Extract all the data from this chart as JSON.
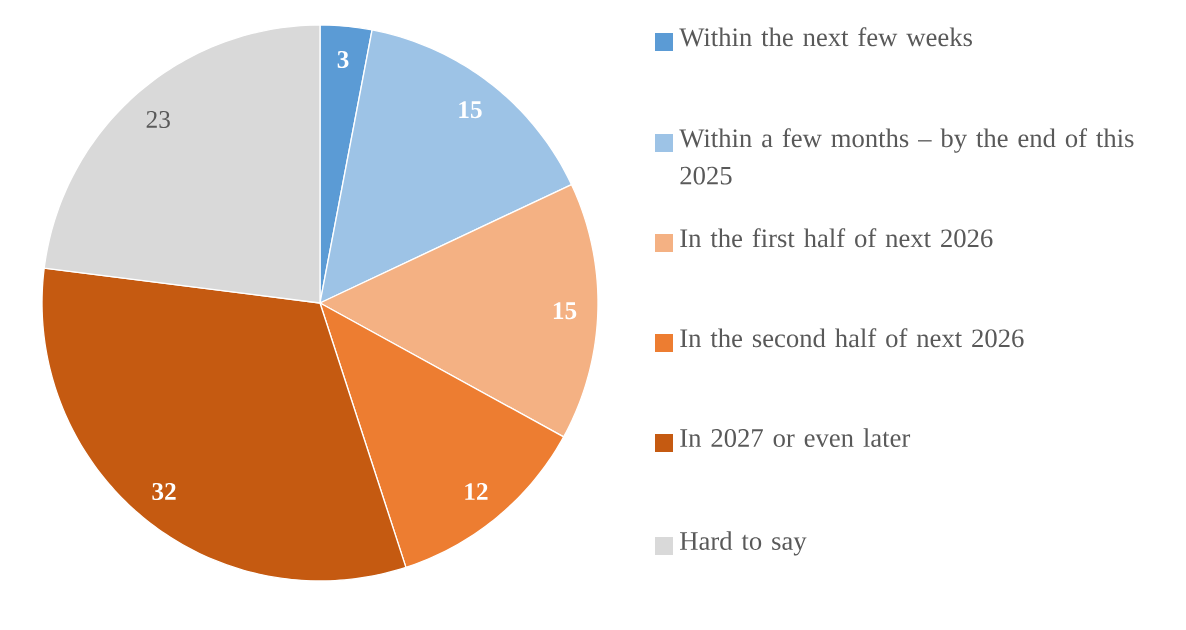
{
  "chart_data": {
    "type": "pie",
    "categories": [
      "Within the next few weeks",
      "Within a few months – by the end of this 2025",
      "In the first half of next 2026",
      "In the second half of next 2026",
      "In 2027 or even later",
      "Hard to say"
    ],
    "values": [
      3,
      15,
      15,
      12,
      32,
      23
    ],
    "colors": [
      "#5b9bd5",
      "#9dc3e6",
      "#f4b183",
      "#ed7d31",
      "#c55a11",
      "#d9d9d9"
    ],
    "data_labels": true,
    "legend": "right"
  }
}
